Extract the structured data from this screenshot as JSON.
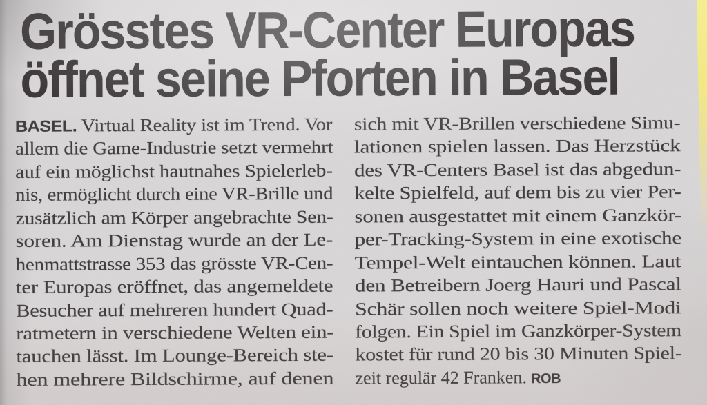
{
  "page": {
    "kind": "newspaper-clipping-photo",
    "language": "de"
  },
  "headline": {
    "line1": "Grösstes VR-Center Europas",
    "line2": "öffnet seine Pforten in Basel"
  },
  "article": {
    "dateline": "BASEL.",
    "left_column": {
      "first_line": "Virtual Reality ist im Trend. Vor",
      "lines": [
        "allem die Game-Industrie setzt vermehrt",
        "auf ein möglichst hautnahes Spielerleb-",
        "nis, ermöglicht durch eine VR-Brille und",
        "zusätzlich am Körper angebrachte Sen-",
        "soren. Am Dienstag wurde an der Le-",
        "henmattstrasse 353 das grösste VR-Cen-",
        "ter Europas eröffnet, das angemeldete",
        "Besucher auf mehreren hundert Quad-",
        "ratmetern in verschiedene Welten ein-",
        "tauchen lässt. Im Lounge-Bereich ste-",
        "hen mehrere Bildschirme, auf denen"
      ]
    },
    "right_column": {
      "lines": [
        "sich mit VR-Brillen verschiedene Simu-",
        "lationen spielen lassen. Das Herzstück",
        "des VR-Centers Basel ist das abgedun-",
        "kelte Spielfeld, auf dem bis zu vier Per-",
        "sonen ausgestattet mit einem Ganzkör-",
        "per-Tracking-System in eine exotische",
        "Tempel-Welt eintauchen können. Laut",
        "den Betreibern Joerg Hauri und Pascal",
        "Schär sollen noch weitere Spiel-Modi",
        "folgen. Ein Spiel im Ganzkörper-System",
        "kostet für rund 20 bis 30 Minuten Spiel-"
      ],
      "last_line": "zeit regulär 42 Franken.",
      "byline": "ROB"
    }
  },
  "colors": {
    "paper": "#d9d6d7",
    "ink": "#3f3b3c",
    "headline_ink": "#353132",
    "yellow_edge": "#f3ea82"
  }
}
